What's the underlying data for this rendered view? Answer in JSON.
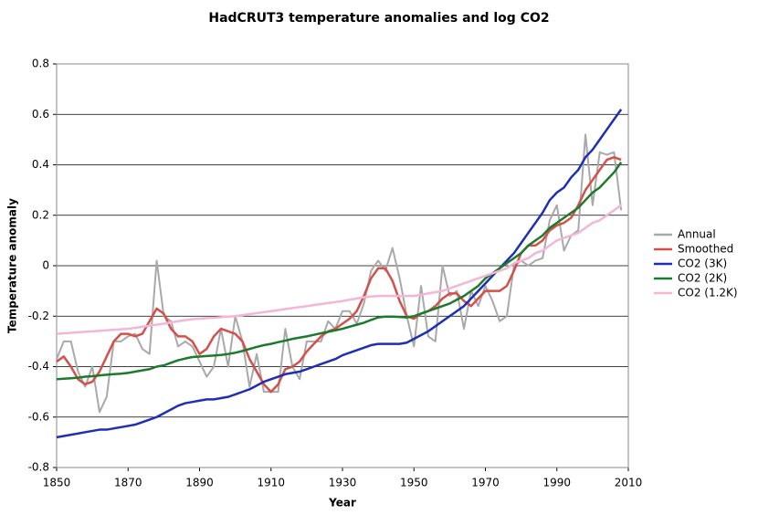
{
  "chart_data": {
    "type": "line",
    "title": "HadCRUT3 temperature anomalies and log CO2",
    "x_label": "Year",
    "y_label": "Temperature anomaly",
    "xlim": [
      1850,
      2010
    ],
    "xticks": [
      1850,
      1870,
      1890,
      1910,
      1930,
      1950,
      1970,
      1990,
      2010
    ],
    "ylim": [
      -0.8,
      0.8
    ],
    "yticks": [
      -0.8,
      -0.6,
      -0.4,
      -0.2,
      0,
      0.2,
      0.4,
      0.6,
      0.8
    ],
    "grid": true,
    "legend": "right",
    "x": [
      1850,
      1852,
      1854,
      1856,
      1858,
      1860,
      1862,
      1864,
      1866,
      1868,
      1870,
      1872,
      1874,
      1876,
      1878,
      1880,
      1882,
      1884,
      1886,
      1888,
      1890,
      1892,
      1894,
      1896,
      1898,
      1900,
      1902,
      1904,
      1906,
      1908,
      1910,
      1912,
      1914,
      1916,
      1918,
      1920,
      1922,
      1924,
      1926,
      1928,
      1930,
      1932,
      1934,
      1936,
      1938,
      1940,
      1942,
      1944,
      1946,
      1948,
      1950,
      1952,
      1954,
      1956,
      1958,
      1960,
      1962,
      1964,
      1966,
      1968,
      1970,
      1972,
      1974,
      1976,
      1978,
      1980,
      1982,
      1984,
      1986,
      1988,
      1990,
      1992,
      1994,
      1996,
      1998,
      2000,
      2002,
      2004,
      2006,
      2008
    ],
    "series": [
      {
        "name": "Annual",
        "color": "#a9a9a9",
        "values": [
          -0.37,
          -0.3,
          -0.3,
          -0.42,
          -0.48,
          -0.4,
          -0.58,
          -0.52,
          -0.3,
          -0.3,
          -0.28,
          -0.27,
          -0.33,
          -0.35,
          0.02,
          -0.2,
          -0.22,
          -0.32,
          -0.3,
          -0.32,
          -0.38,
          -0.44,
          -0.4,
          -0.25,
          -0.4,
          -0.2,
          -0.3,
          -0.48,
          -0.35,
          -0.5,
          -0.5,
          -0.5,
          -0.25,
          -0.4,
          -0.45,
          -0.3,
          -0.3,
          -0.3,
          -0.22,
          -0.25,
          -0.18,
          -0.18,
          -0.23,
          -0.15,
          -0.02,
          0.02,
          -0.02,
          0.07,
          -0.05,
          -0.2,
          -0.32,
          -0.08,
          -0.28,
          -0.3,
          0.0,
          -0.12,
          -0.1,
          -0.25,
          -0.1,
          -0.16,
          -0.08,
          -0.14,
          -0.22,
          -0.2,
          0.0,
          0.02,
          0.0,
          0.02,
          0.03,
          0.18,
          0.24,
          0.06,
          0.12,
          0.14,
          0.52,
          0.24,
          0.45,
          0.44,
          0.45,
          0.22
        ]
      },
      {
        "name": "Smoothed",
        "color": "#d5504a",
        "values": [
          -0.38,
          -0.36,
          -0.4,
          -0.45,
          -0.47,
          -0.46,
          -0.42,
          -0.36,
          -0.3,
          -0.27,
          -0.27,
          -0.28,
          -0.27,
          -0.22,
          -0.17,
          -0.19,
          -0.25,
          -0.28,
          -0.28,
          -0.3,
          -0.35,
          -0.33,
          -0.28,
          -0.25,
          -0.26,
          -0.27,
          -0.3,
          -0.37,
          -0.42,
          -0.47,
          -0.5,
          -0.47,
          -0.41,
          -0.4,
          -0.38,
          -0.34,
          -0.31,
          -0.28,
          -0.26,
          -0.25,
          -0.23,
          -0.21,
          -0.18,
          -0.12,
          -0.05,
          -0.01,
          -0.01,
          -0.06,
          -0.14,
          -0.2,
          -0.21,
          -0.19,
          -0.18,
          -0.16,
          -0.13,
          -0.11,
          -0.11,
          -0.14,
          -0.16,
          -0.13,
          -0.1,
          -0.1,
          -0.1,
          -0.08,
          -0.02,
          0.05,
          0.08,
          0.08,
          0.1,
          0.14,
          0.16,
          0.17,
          0.19,
          0.24,
          0.3,
          0.34,
          0.38,
          0.42,
          0.43,
          0.42
        ]
      },
      {
        "name": "CO2 (3K)",
        "color": "#1f2fb3",
        "values": [
          -0.68,
          -0.675,
          -0.67,
          -0.665,
          -0.66,
          -0.655,
          -0.65,
          -0.65,
          -0.645,
          -0.64,
          -0.635,
          -0.63,
          -0.62,
          -0.61,
          -0.6,
          -0.585,
          -0.57,
          -0.555,
          -0.545,
          -0.54,
          -0.535,
          -0.53,
          -0.53,
          -0.525,
          -0.52,
          -0.51,
          -0.5,
          -0.49,
          -0.475,
          -0.46,
          -0.45,
          -0.44,
          -0.43,
          -0.425,
          -0.42,
          -0.41,
          -0.4,
          -0.39,
          -0.38,
          -0.37,
          -0.355,
          -0.345,
          -0.335,
          -0.325,
          -0.315,
          -0.31,
          -0.31,
          -0.31,
          -0.31,
          -0.305,
          -0.29,
          -0.275,
          -0.26,
          -0.24,
          -0.22,
          -0.2,
          -0.18,
          -0.16,
          -0.13,
          -0.1,
          -0.07,
          -0.04,
          -0.01,
          0.02,
          0.05,
          0.09,
          0.13,
          0.17,
          0.21,
          0.26,
          0.29,
          0.31,
          0.35,
          0.38,
          0.43,
          0.46,
          0.5,
          0.54,
          0.58,
          0.62
        ]
      },
      {
        "name": "CO2 (2K)",
        "color": "#1c7a2c",
        "values": [
          -0.45,
          -0.448,
          -0.446,
          -0.444,
          -0.44,
          -0.438,
          -0.435,
          -0.432,
          -0.43,
          -0.428,
          -0.425,
          -0.42,
          -0.415,
          -0.41,
          -0.4,
          -0.395,
          -0.385,
          -0.375,
          -0.368,
          -0.362,
          -0.36,
          -0.358,
          -0.356,
          -0.354,
          -0.35,
          -0.345,
          -0.338,
          -0.33,
          -0.322,
          -0.315,
          -0.31,
          -0.303,
          -0.297,
          -0.29,
          -0.285,
          -0.28,
          -0.274,
          -0.268,
          -0.262,
          -0.256,
          -0.25,
          -0.242,
          -0.234,
          -0.226,
          -0.215,
          -0.205,
          -0.202,
          -0.202,
          -0.203,
          -0.205,
          -0.2,
          -0.19,
          -0.18,
          -0.17,
          -0.16,
          -0.15,
          -0.135,
          -0.12,
          -0.1,
          -0.08,
          -0.05,
          -0.03,
          -0.01,
          0.01,
          0.03,
          0.05,
          0.08,
          0.1,
          0.12,
          0.15,
          0.17,
          0.19,
          0.21,
          0.23,
          0.26,
          0.29,
          0.31,
          0.34,
          0.37,
          0.41
        ]
      },
      {
        "name": "CO2 (1.2K)",
        "color": "#f5b5d6",
        "values": [
          -0.27,
          -0.268,
          -0.266,
          -0.264,
          -0.262,
          -0.26,
          -0.258,
          -0.256,
          -0.254,
          -0.252,
          -0.25,
          -0.246,
          -0.242,
          -0.238,
          -0.234,
          -0.23,
          -0.225,
          -0.22,
          -0.216,
          -0.212,
          -0.21,
          -0.208,
          -0.206,
          -0.204,
          -0.202,
          -0.2,
          -0.196,
          -0.192,
          -0.188,
          -0.184,
          -0.18,
          -0.176,
          -0.172,
          -0.168,
          -0.164,
          -0.16,
          -0.156,
          -0.152,
          -0.148,
          -0.144,
          -0.14,
          -0.135,
          -0.13,
          -0.125,
          -0.122,
          -0.12,
          -0.12,
          -0.12,
          -0.12,
          -0.12,
          -0.12,
          -0.115,
          -0.11,
          -0.105,
          -0.1,
          -0.09,
          -0.08,
          -0.07,
          -0.06,
          -0.05,
          -0.04,
          -0.03,
          -0.02,
          -0.01,
          0.01,
          0.02,
          0.03,
          0.05,
          0.06,
          0.08,
          0.1,
          0.11,
          0.12,
          0.13,
          0.15,
          0.17,
          0.18,
          0.2,
          0.22,
          0.24
        ]
      }
    ]
  }
}
